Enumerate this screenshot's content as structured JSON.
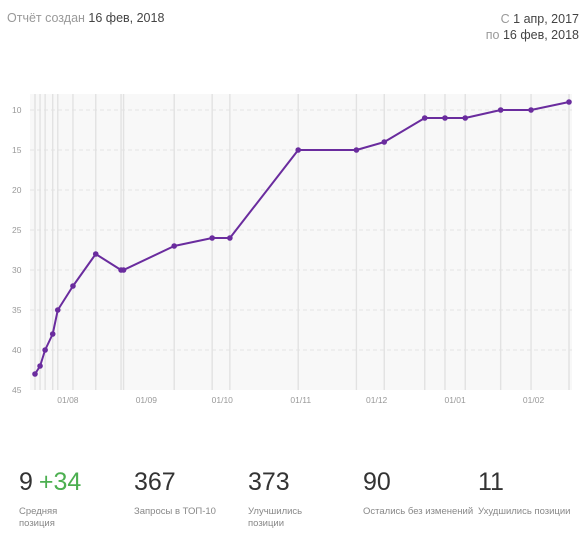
{
  "header": {
    "created_label": "Отчёт создан",
    "created_date": "16 фев, 2018",
    "from_label": "С",
    "from_date": "1 апр, 2017",
    "to_label": "по",
    "to_date": "16 фев, 2018"
  },
  "chart_data": {
    "type": "line",
    "yaxis_inverted": true,
    "ylim": [
      45,
      9
    ],
    "yticks": [
      "10",
      "15",
      "20",
      "25",
      "30",
      "35",
      "40",
      "45"
    ],
    "xticks": [
      "01/08",
      "01/09",
      "01/10",
      "01/11",
      "01/12",
      "01/01",
      "01/02"
    ],
    "grid": true,
    "colors": {
      "line": "#6a2c9e",
      "grid": "#e4e4e4",
      "background": "#f8f8f8"
    },
    "x_dates": [
      "2017-07-19",
      "2017-07-21",
      "2017-07-23",
      "2017-07-26",
      "2017-07-28",
      "2017-08-03",
      "2017-08-12",
      "2017-08-22",
      "2017-08-23",
      "2017-09-12",
      "2017-09-27",
      "2017-10-04",
      "2017-10-31",
      "2017-11-23",
      "2017-12-04",
      "2017-12-20",
      "2017-12-28",
      "2018-01-05",
      "2018-01-19",
      "2018-01-31",
      "2018-02-15"
    ],
    "y_values": [
      43,
      42,
      40,
      38,
      35,
      32,
      28,
      30,
      30,
      27,
      26,
      26,
      15,
      15,
      14,
      11,
      11,
      11,
      10,
      10,
      9
    ]
  },
  "stats": [
    {
      "value": "9",
      "delta": "+34",
      "label": "Средняя позиция"
    },
    {
      "value": "367",
      "label": "Запросы в ТОП-10"
    },
    {
      "value": "373",
      "label": "Улучшились позиции"
    },
    {
      "value": "90",
      "label": "Остались без изменений"
    },
    {
      "value": "11",
      "label": "Ухудшились позиции"
    }
  ]
}
